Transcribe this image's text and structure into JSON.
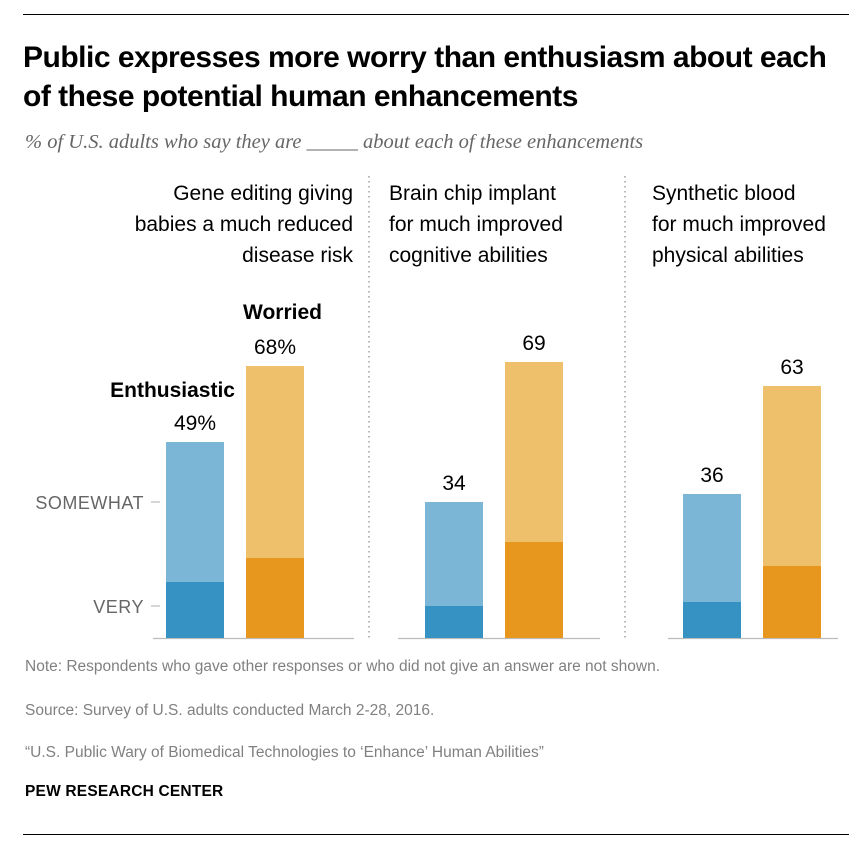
{
  "title": "Public expresses more worry than enthusiasm about each of these potential human enhancements",
  "subtitle": "% of U.S. adults who say they are _____ about each of these enhancements",
  "note": "Note: Respondents who gave other responses or who did not give an answer are not shown.",
  "source": "Source: Survey of U.S. adults conducted March 2-28, 2016.",
  "report": "“U.S. Public Wary of Biomedical Technologies to ‘Enhance’ Human Abilities”",
  "brand": "PEW RESEARCH CENTER",
  "colors": {
    "enthusiastic_very": "#3692c2",
    "enthusiastic_somewhat": "#7bb6d7",
    "worried_very": "#e7961e",
    "worried_somewhat": "#efc06c",
    "axis": "#bbbbbb",
    "divider": "#888888"
  },
  "chart_data": {
    "type": "bar",
    "stacked": true,
    "ylim": [
      0,
      100
    ],
    "stack_labels": [
      "SOMEWHAT",
      "VERY"
    ],
    "legend": [
      "Enthusiastic",
      "Worried"
    ],
    "panels": [
      {
        "label": [
          "Gene editing giving",
          "babies a much reduced",
          "disease risk"
        ],
        "label_align": "right",
        "series": [
          {
            "name": "Enthusiastic",
            "total": 49,
            "total_label": "49%",
            "very": 14
          },
          {
            "name": "Worried",
            "total": 68,
            "total_label": "68%",
            "very": 20
          }
        ]
      },
      {
        "label": [
          "Brain chip implant",
          "for much improved",
          "cognitive abilities"
        ],
        "label_align": "left",
        "series": [
          {
            "name": "Enthusiastic",
            "total": 34,
            "total_label": "34",
            "very": 8
          },
          {
            "name": "Worried",
            "total": 69,
            "total_label": "69",
            "very": 24
          }
        ]
      },
      {
        "label": [
          "Synthetic blood",
          "for much improved",
          "physical abilities"
        ],
        "label_align": "left",
        "series": [
          {
            "name": "Enthusiastic",
            "total": 36,
            "total_label": "36",
            "very": 9
          },
          {
            "name": "Worried",
            "total": 63,
            "total_label": "63",
            "very": 18
          }
        ]
      }
    ]
  }
}
